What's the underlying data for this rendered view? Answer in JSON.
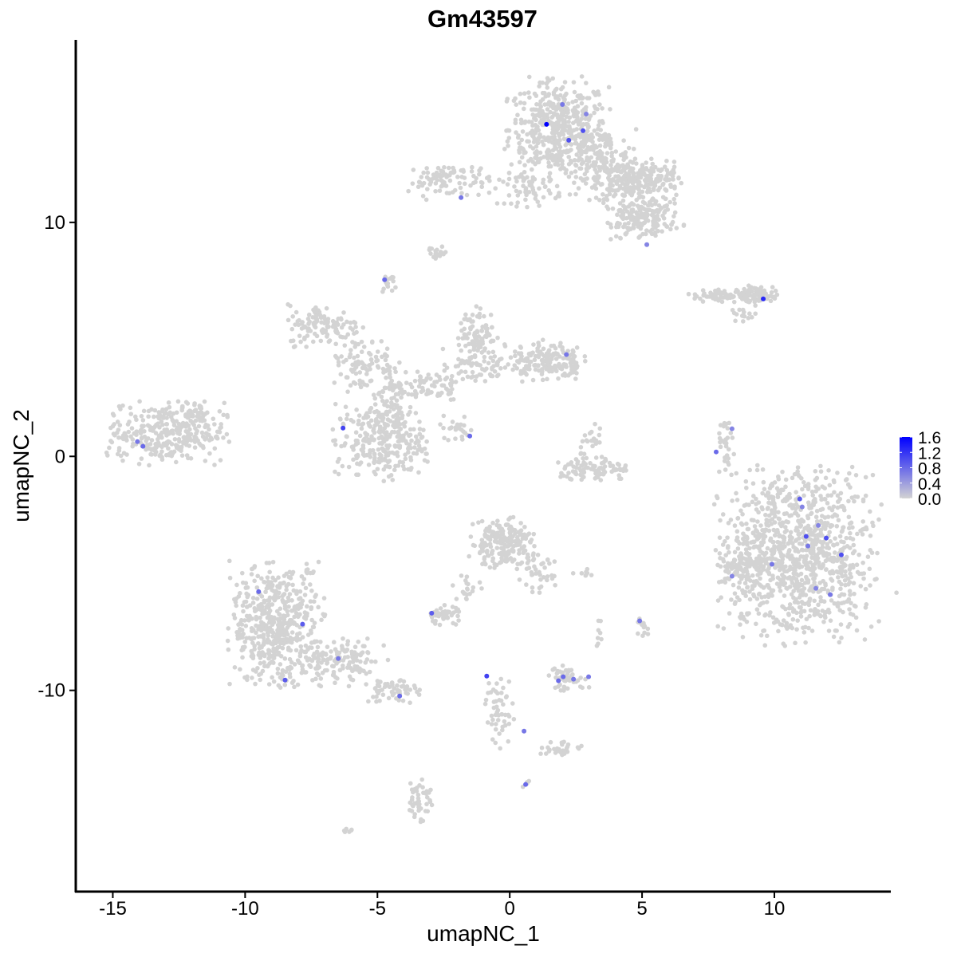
{
  "chart_data": {
    "type": "scatter",
    "title": "Gm43597",
    "xlabel": "umapNC_1",
    "ylabel": "umapNC_2",
    "xlim": [
      -16.4,
      14.4
    ],
    "ylim": [
      -18.6,
      17.8
    ],
    "xticks": [
      -15,
      -10,
      -5,
      0,
      5,
      10
    ],
    "yticks": [
      -10,
      0,
      10
    ],
    "grid": false,
    "legend": {
      "position": "right",
      "type": "colorbar",
      "ticks": [
        "1.6",
        "1.2",
        "0.8",
        "0.4",
        "0.0"
      ],
      "range": [
        0,
        1.6
      ],
      "low_color": "#D3D3D3",
      "high_color": "#0000FF"
    },
    "grey_clusters": [
      {
        "cx": 1.84,
        "cy": 14.0,
        "sx": 1.1,
        "sy": 1.2,
        "n": 480
      },
      {
        "cx": 3.4,
        "cy": 12.6,
        "sx": 0.8,
        "sy": 0.8,
        "n": 160
      },
      {
        "cx": 4.4,
        "cy": 11.8,
        "sx": 0.7,
        "sy": 0.6,
        "n": 150
      },
      {
        "cx": 5.5,
        "cy": 11.9,
        "sx": 0.6,
        "sy": 0.4,
        "n": 90
      },
      {
        "cx": 5.3,
        "cy": 10.3,
        "sx": 0.7,
        "sy": 0.5,
        "n": 130
      },
      {
        "cx": 4.4,
        "cy": 10.0,
        "sx": 0.5,
        "sy": 0.5,
        "n": 50
      },
      {
        "cx": 0.8,
        "cy": 11.4,
        "sx": 0.7,
        "sy": 0.4,
        "n": 60
      },
      {
        "cx": -2.3,
        "cy": 11.8,
        "sx": 0.9,
        "sy": 0.45,
        "n": 90
      },
      {
        "cx": -2.8,
        "cy": 8.7,
        "sx": 0.25,
        "sy": 0.2,
        "n": 18
      },
      {
        "cx": -4.6,
        "cy": 7.4,
        "sx": 0.2,
        "sy": 0.3,
        "n": 15
      },
      {
        "cx": 8.2,
        "cy": 6.85,
        "sx": 0.9,
        "sy": 0.2,
        "n": 70
      },
      {
        "cx": 9.4,
        "cy": 6.9,
        "sx": 0.4,
        "sy": 0.25,
        "n": 60
      },
      {
        "cx": 8.8,
        "cy": 6.0,
        "sx": 0.3,
        "sy": 0.2,
        "n": 15
      },
      {
        "cx": -13.0,
        "cy": 1.0,
        "sx": 1.3,
        "sy": 0.75,
        "n": 320
      },
      {
        "cx": -11.9,
        "cy": 1.9,
        "sx": 0.4,
        "sy": 0.4,
        "n": 30
      },
      {
        "cx": -7.0,
        "cy": 5.6,
        "sx": 0.8,
        "sy": 0.5,
        "n": 120
      },
      {
        "cx": -5.6,
        "cy": 4.0,
        "sx": 0.8,
        "sy": 0.7,
        "n": 90
      },
      {
        "cx": -4.9,
        "cy": 0.6,
        "sx": 1.0,
        "sy": 0.9,
        "n": 260
      },
      {
        "cx": -4.5,
        "cy": 2.3,
        "sx": 0.5,
        "sy": 0.8,
        "n": 80
      },
      {
        "cx": -3.2,
        "cy": 3.0,
        "sx": 0.8,
        "sy": 0.4,
        "n": 70
      },
      {
        "cx": -1.2,
        "cy": 5.3,
        "sx": 0.4,
        "sy": 0.6,
        "n": 80
      },
      {
        "cx": -1.0,
        "cy": 4.0,
        "sx": 0.9,
        "sy": 0.5,
        "n": 80
      },
      {
        "cx": 1.4,
        "cy": 4.1,
        "sx": 0.8,
        "sy": 0.5,
        "n": 160
      },
      {
        "cx": -2.0,
        "cy": 1.2,
        "sx": 0.4,
        "sy": 0.3,
        "n": 25
      },
      {
        "cx": 3.2,
        "cy": -0.6,
        "sx": 0.8,
        "sy": 0.3,
        "n": 90
      },
      {
        "cx": 3.2,
        "cy": 0.5,
        "sx": 0.3,
        "sy": 0.5,
        "n": 25
      },
      {
        "cx": 8.2,
        "cy": 0.4,
        "sx": 0.2,
        "sy": 0.7,
        "n": 30
      },
      {
        "cx": 10.9,
        "cy": -4.2,
        "sx": 1.7,
        "sy": 2.1,
        "n": 1000
      },
      {
        "cx": 8.8,
        "cy": -4.6,
        "sx": 0.6,
        "sy": 0.8,
        "n": 90
      },
      {
        "cx": -0.3,
        "cy": -3.7,
        "sx": 0.7,
        "sy": 0.6,
        "n": 200
      },
      {
        "cx": 1.0,
        "cy": -5.0,
        "sx": 0.4,
        "sy": 0.5,
        "n": 40
      },
      {
        "cx": -2.5,
        "cy": -6.8,
        "sx": 0.4,
        "sy": 0.25,
        "n": 45
      },
      {
        "cx": -1.6,
        "cy": -5.6,
        "sx": 0.3,
        "sy": 0.4,
        "n": 20
      },
      {
        "cx": -8.8,
        "cy": -7.2,
        "sx": 1.0,
        "sy": 1.5,
        "n": 520
      },
      {
        "cx": -6.4,
        "cy": -8.8,
        "sx": 1.0,
        "sy": 0.6,
        "n": 130
      },
      {
        "cx": -4.5,
        "cy": -10.0,
        "sx": 0.6,
        "sy": 0.3,
        "n": 60
      },
      {
        "cx": 2.2,
        "cy": -9.5,
        "sx": 0.5,
        "sy": 0.3,
        "n": 50
      },
      {
        "cx": -0.4,
        "cy": -10.8,
        "sx": 0.3,
        "sy": 0.9,
        "n": 50
      },
      {
        "cx": 2.0,
        "cy": -12.5,
        "sx": 0.5,
        "sy": 0.2,
        "n": 30
      },
      {
        "cx": -3.4,
        "cy": -14.6,
        "sx": 0.25,
        "sy": 0.6,
        "n": 45
      },
      {
        "cx": 5.0,
        "cy": -7.3,
        "sx": 0.2,
        "sy": 0.3,
        "n": 15
      },
      {
        "cx": 3.4,
        "cy": -7.6,
        "sx": 0.1,
        "sy": 0.4,
        "n": 8
      },
      {
        "cx": 2.9,
        "cy": -5.0,
        "sx": 0.3,
        "sy": 0.1,
        "n": 8
      },
      {
        "cx": -6.1,
        "cy": -16.1,
        "sx": 0.1,
        "sy": 0.1,
        "n": 6
      },
      {
        "cx": 0.6,
        "cy": -14.0,
        "sx": 0.1,
        "sy": 0.1,
        "n": 5
      }
    ],
    "expressing_points": [
      {
        "x": 1.39,
        "y": 14.19,
        "v": 1.6
      },
      {
        "x": 1.99,
        "y": 15.04,
        "v": 0.7
      },
      {
        "x": 2.89,
        "y": 14.63,
        "v": 0.6
      },
      {
        "x": 2.77,
        "y": 13.92,
        "v": 1.0
      },
      {
        "x": 2.23,
        "y": 13.51,
        "v": 1.0
      },
      {
        "x": -1.84,
        "y": 11.06,
        "v": 0.7
      },
      {
        "x": 5.18,
        "y": 9.05,
        "v": 0.6
      },
      {
        "x": -4.73,
        "y": 7.55,
        "v": 0.8
      },
      {
        "x": 9.58,
        "y": 6.73,
        "v": 1.3
      },
      {
        "x": 2.14,
        "y": 4.35,
        "v": 0.7
      },
      {
        "x": -6.3,
        "y": 1.21,
        "v": 1.1
      },
      {
        "x": -14.07,
        "y": 0.63,
        "v": 0.7
      },
      {
        "x": -13.86,
        "y": 0.43,
        "v": 0.8
      },
      {
        "x": -1.51,
        "y": 0.87,
        "v": 0.8
      },
      {
        "x": 8.4,
        "y": 1.18,
        "v": 0.6
      },
      {
        "x": 7.8,
        "y": 0.19,
        "v": 0.8
      },
      {
        "x": 10.96,
        "y": -1.82,
        "v": 0.9
      },
      {
        "x": 11.05,
        "y": -2.16,
        "v": 0.6
      },
      {
        "x": 11.66,
        "y": -2.95,
        "v": 0.6
      },
      {
        "x": 11.2,
        "y": -3.42,
        "v": 1.0
      },
      {
        "x": 11.96,
        "y": -3.49,
        "v": 1.0
      },
      {
        "x": 11.27,
        "y": -3.83,
        "v": 0.7
      },
      {
        "x": 9.91,
        "y": -4.61,
        "v": 0.7
      },
      {
        "x": 12.53,
        "y": -4.21,
        "v": 1.0
      },
      {
        "x": 8.4,
        "y": -5.12,
        "v": 0.6
      },
      {
        "x": 11.57,
        "y": -5.64,
        "v": 0.6
      },
      {
        "x": 12.11,
        "y": -5.91,
        "v": 0.7
      },
      {
        "x": -9.49,
        "y": -5.78,
        "v": 0.8
      },
      {
        "x": -7.83,
        "y": -7.17,
        "v": 0.9
      },
      {
        "x": -6.48,
        "y": -8.64,
        "v": 0.7
      },
      {
        "x": -8.49,
        "y": -9.56,
        "v": 0.9
      },
      {
        "x": -4.16,
        "y": -10.24,
        "v": 0.8
      },
      {
        "x": -2.95,
        "y": -6.7,
        "v": 0.9
      },
      {
        "x": -0.87,
        "y": -9.39,
        "v": 1.1
      },
      {
        "x": 2.02,
        "y": -9.42,
        "v": 0.8
      },
      {
        "x": 1.84,
        "y": -9.59,
        "v": 0.8
      },
      {
        "x": 2.41,
        "y": -9.52,
        "v": 0.7
      },
      {
        "x": 2.98,
        "y": -9.42,
        "v": 0.7
      },
      {
        "x": 0.54,
        "y": -11.74,
        "v": 0.7
      },
      {
        "x": 0.6,
        "y": -14.02,
        "v": 0.8
      },
      {
        "x": 4.91,
        "y": -7.03,
        "v": 0.7
      }
    ]
  }
}
